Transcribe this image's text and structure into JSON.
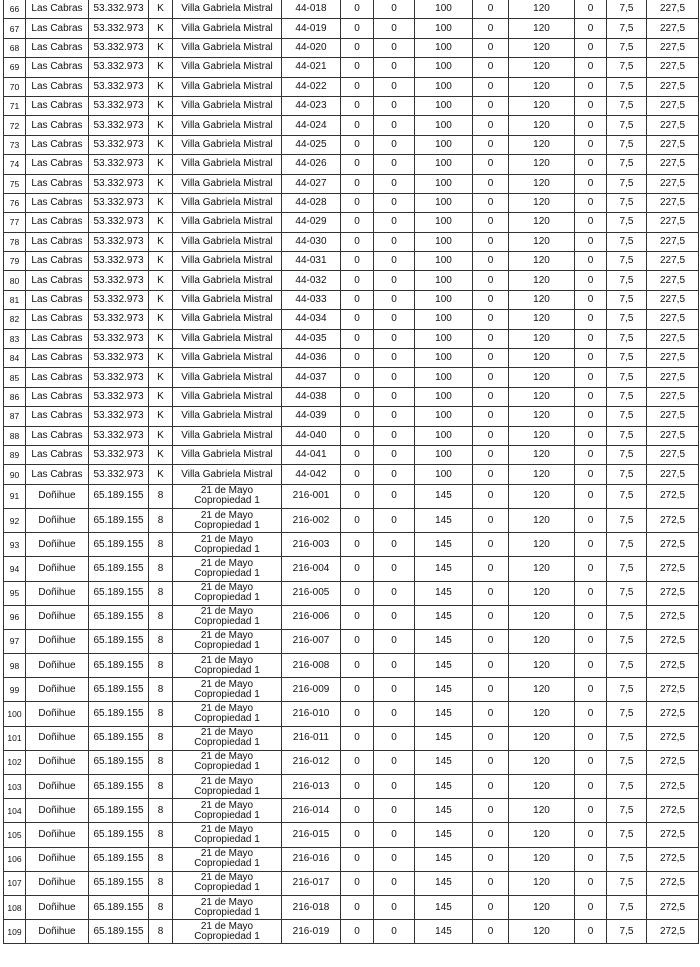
{
  "rows": [
    [
      "66",
      "Las Cabras",
      "53.332.973",
      "K",
      "Villa Gabriela Mistral",
      "44-018",
      "0",
      "0",
      "100",
      "0",
      "120",
      "0",
      "7,5",
      "227,5"
    ],
    [
      "67",
      "Las Cabras",
      "53.332.973",
      "K",
      "Villa Gabriela Mistral",
      "44-019",
      "0",
      "0",
      "100",
      "0",
      "120",
      "0",
      "7,5",
      "227,5"
    ],
    [
      "68",
      "Las Cabras",
      "53.332.973",
      "K",
      "Villa Gabriela Mistral",
      "44-020",
      "0",
      "0",
      "100",
      "0",
      "120",
      "0",
      "7,5",
      "227,5"
    ],
    [
      "69",
      "Las Cabras",
      "53.332.973",
      "K",
      "Villa Gabriela Mistral",
      "44-021",
      "0",
      "0",
      "100",
      "0",
      "120",
      "0",
      "7,5",
      "227,5"
    ],
    [
      "70",
      "Las Cabras",
      "53.332.973",
      "K",
      "Villa Gabriela Mistral",
      "44-022",
      "0",
      "0",
      "100",
      "0",
      "120",
      "0",
      "7,5",
      "227,5"
    ],
    [
      "71",
      "Las Cabras",
      "53.332.973",
      "K",
      "Villa Gabriela Mistral",
      "44-023",
      "0",
      "0",
      "100",
      "0",
      "120",
      "0",
      "7,5",
      "227,5"
    ],
    [
      "72",
      "Las Cabras",
      "53.332.973",
      "K",
      "Villa Gabriela Mistral",
      "44-024",
      "0",
      "0",
      "100",
      "0",
      "120",
      "0",
      "7,5",
      "227,5"
    ],
    [
      "73",
      "Las Cabras",
      "53.332.973",
      "K",
      "Villa Gabriela Mistral",
      "44-025",
      "0",
      "0",
      "100",
      "0",
      "120",
      "0",
      "7,5",
      "227,5"
    ],
    [
      "74",
      "Las Cabras",
      "53.332.973",
      "K",
      "Villa Gabriela Mistral",
      "44-026",
      "0",
      "0",
      "100",
      "0",
      "120",
      "0",
      "7,5",
      "227,5"
    ],
    [
      "75",
      "Las Cabras",
      "53.332.973",
      "K",
      "Villa Gabriela Mistral",
      "44-027",
      "0",
      "0",
      "100",
      "0",
      "120",
      "0",
      "7,5",
      "227,5"
    ],
    [
      "76",
      "Las Cabras",
      "53.332.973",
      "K",
      "Villa Gabriela Mistral",
      "44-028",
      "0",
      "0",
      "100",
      "0",
      "120",
      "0",
      "7,5",
      "227,5"
    ],
    [
      "77",
      "Las Cabras",
      "53.332.973",
      "K",
      "Villa Gabriela Mistral",
      "44-029",
      "0",
      "0",
      "100",
      "0",
      "120",
      "0",
      "7,5",
      "227,5"
    ],
    [
      "78",
      "Las Cabras",
      "53.332.973",
      "K",
      "Villa Gabriela Mistral",
      "44-030",
      "0",
      "0",
      "100",
      "0",
      "120",
      "0",
      "7,5",
      "227,5"
    ],
    [
      "79",
      "Las Cabras",
      "53.332.973",
      "K",
      "Villa Gabriela Mistral",
      "44-031",
      "0",
      "0",
      "100",
      "0",
      "120",
      "0",
      "7,5",
      "227,5"
    ],
    [
      "80",
      "Las Cabras",
      "53.332.973",
      "K",
      "Villa Gabriela Mistral",
      "44-032",
      "0",
      "0",
      "100",
      "0",
      "120",
      "0",
      "7,5",
      "227,5"
    ],
    [
      "81",
      "Las Cabras",
      "53.332.973",
      "K",
      "Villa Gabriela Mistral",
      "44-033",
      "0",
      "0",
      "100",
      "0",
      "120",
      "0",
      "7,5",
      "227,5"
    ],
    [
      "82",
      "Las Cabras",
      "53.332.973",
      "K",
      "Villa Gabriela Mistral",
      "44-034",
      "0",
      "0",
      "100",
      "0",
      "120",
      "0",
      "7,5",
      "227,5"
    ],
    [
      "83",
      "Las Cabras",
      "53.332.973",
      "K",
      "Villa Gabriela Mistral",
      "44-035",
      "0",
      "0",
      "100",
      "0",
      "120",
      "0",
      "7,5",
      "227,5"
    ],
    [
      "84",
      "Las Cabras",
      "53.332.973",
      "K",
      "Villa Gabriela Mistral",
      "44-036",
      "0",
      "0",
      "100",
      "0",
      "120",
      "0",
      "7,5",
      "227,5"
    ],
    [
      "85",
      "Las Cabras",
      "53.332.973",
      "K",
      "Villa Gabriela Mistral",
      "44-037",
      "0",
      "0",
      "100",
      "0",
      "120",
      "0",
      "7,5",
      "227,5"
    ],
    [
      "86",
      "Las Cabras",
      "53.332.973",
      "K",
      "Villa Gabriela Mistral",
      "44-038",
      "0",
      "0",
      "100",
      "0",
      "120",
      "0",
      "7,5",
      "227,5"
    ],
    [
      "87",
      "Las Cabras",
      "53.332.973",
      "K",
      "Villa Gabriela Mistral",
      "44-039",
      "0",
      "0",
      "100",
      "0",
      "120",
      "0",
      "7,5",
      "227,5"
    ],
    [
      "88",
      "Las Cabras",
      "53.332.973",
      "K",
      "Villa Gabriela Mistral",
      "44-040",
      "0",
      "0",
      "100",
      "0",
      "120",
      "0",
      "7,5",
      "227,5"
    ],
    [
      "89",
      "Las Cabras",
      "53.332.973",
      "K",
      "Villa Gabriela Mistral",
      "44-041",
      "0",
      "0",
      "100",
      "0",
      "120",
      "0",
      "7,5",
      "227,5"
    ],
    [
      "90",
      "Las Cabras",
      "53.332.973",
      "K",
      "Villa Gabriela Mistral",
      "44-042",
      "0",
      "0",
      "100",
      "0",
      "120",
      "0",
      "7,5",
      "227,5"
    ],
    [
      "91",
      "Doñihue",
      "65.189.155",
      "8",
      "21 de Mayo Copropiedad 1",
      "216-001",
      "0",
      "0",
      "145",
      "0",
      "120",
      "0",
      "7,5",
      "272,5"
    ],
    [
      "92",
      "Doñihue",
      "65.189.155",
      "8",
      "21 de Mayo Copropiedad 1",
      "216-002",
      "0",
      "0",
      "145",
      "0",
      "120",
      "0",
      "7,5",
      "272,5"
    ],
    [
      "93",
      "Doñihue",
      "65.189.155",
      "8",
      "21 de Mayo Copropiedad 1",
      "216-003",
      "0",
      "0",
      "145",
      "0",
      "120",
      "0",
      "7,5",
      "272,5"
    ],
    [
      "94",
      "Doñihue",
      "65.189.155",
      "8",
      "21 de Mayo Copropiedad 1",
      "216-004",
      "0",
      "0",
      "145",
      "0",
      "120",
      "0",
      "7,5",
      "272,5"
    ],
    [
      "95",
      "Doñihue",
      "65.189.155",
      "8",
      "21 de Mayo Copropiedad 1",
      "216-005",
      "0",
      "0",
      "145",
      "0",
      "120",
      "0",
      "7,5",
      "272,5"
    ],
    [
      "96",
      "Doñihue",
      "65.189.155",
      "8",
      "21 de Mayo Copropiedad 1",
      "216-006",
      "0",
      "0",
      "145",
      "0",
      "120",
      "0",
      "7,5",
      "272,5"
    ],
    [
      "97",
      "Doñihue",
      "65.189.155",
      "8",
      "21 de Mayo Copropiedad 1",
      "216-007",
      "0",
      "0",
      "145",
      "0",
      "120",
      "0",
      "7,5",
      "272,5"
    ],
    [
      "98",
      "Doñihue",
      "65.189.155",
      "8",
      "21 de Mayo Copropiedad 1",
      "216-008",
      "0",
      "0",
      "145",
      "0",
      "120",
      "0",
      "7,5",
      "272,5"
    ],
    [
      "99",
      "Doñihue",
      "65.189.155",
      "8",
      "21 de Mayo Copropiedad 1",
      "216-009",
      "0",
      "0",
      "145",
      "0",
      "120",
      "0",
      "7,5",
      "272,5"
    ],
    [
      "100",
      "Doñihue",
      "65.189.155",
      "8",
      "21 de Mayo Copropiedad 1",
      "216-010",
      "0",
      "0",
      "145",
      "0",
      "120",
      "0",
      "7,5",
      "272,5"
    ],
    [
      "101",
      "Doñihue",
      "65.189.155",
      "8",
      "21 de Mayo Copropiedad 1",
      "216-011",
      "0",
      "0",
      "145",
      "0",
      "120",
      "0",
      "7,5",
      "272,5"
    ],
    [
      "102",
      "Doñihue",
      "65.189.155",
      "8",
      "21 de Mayo Copropiedad 1",
      "216-012",
      "0",
      "0",
      "145",
      "0",
      "120",
      "0",
      "7,5",
      "272,5"
    ],
    [
      "103",
      "Doñihue",
      "65.189.155",
      "8",
      "21 de Mayo Copropiedad 1",
      "216-013",
      "0",
      "0",
      "145",
      "0",
      "120",
      "0",
      "7,5",
      "272,5"
    ],
    [
      "104",
      "Doñihue",
      "65.189.155",
      "8",
      "21 de Mayo Copropiedad 1",
      "216-014",
      "0",
      "0",
      "145",
      "0",
      "120",
      "0",
      "7,5",
      "272,5"
    ],
    [
      "105",
      "Doñihue",
      "65.189.155",
      "8",
      "21 de Mayo Copropiedad 1",
      "216-015",
      "0",
      "0",
      "145",
      "0",
      "120",
      "0",
      "7,5",
      "272,5"
    ],
    [
      "106",
      "Doñihue",
      "65.189.155",
      "8",
      "21 de Mayo Copropiedad 1",
      "216-016",
      "0",
      "0",
      "145",
      "0",
      "120",
      "0",
      "7,5",
      "272,5"
    ],
    [
      "107",
      "Doñihue",
      "65.189.155",
      "8",
      "21 de Mayo Copropiedad 1",
      "216-017",
      "0",
      "0",
      "145",
      "0",
      "120",
      "0",
      "7,5",
      "272,5"
    ],
    [
      "108",
      "Doñihue",
      "65.189.155",
      "8",
      "21 de Mayo Copropiedad 1",
      "216-018",
      "0",
      "0",
      "145",
      "0",
      "120",
      "0",
      "7,5",
      "272,5"
    ],
    [
      "109",
      "Doñihue",
      "65.189.155",
      "8",
      "21 de Mayo Copropiedad 1",
      "216-019",
      "0",
      "0",
      "145",
      "0",
      "120",
      "0",
      "7,5",
      "272,5"
    ]
  ]
}
